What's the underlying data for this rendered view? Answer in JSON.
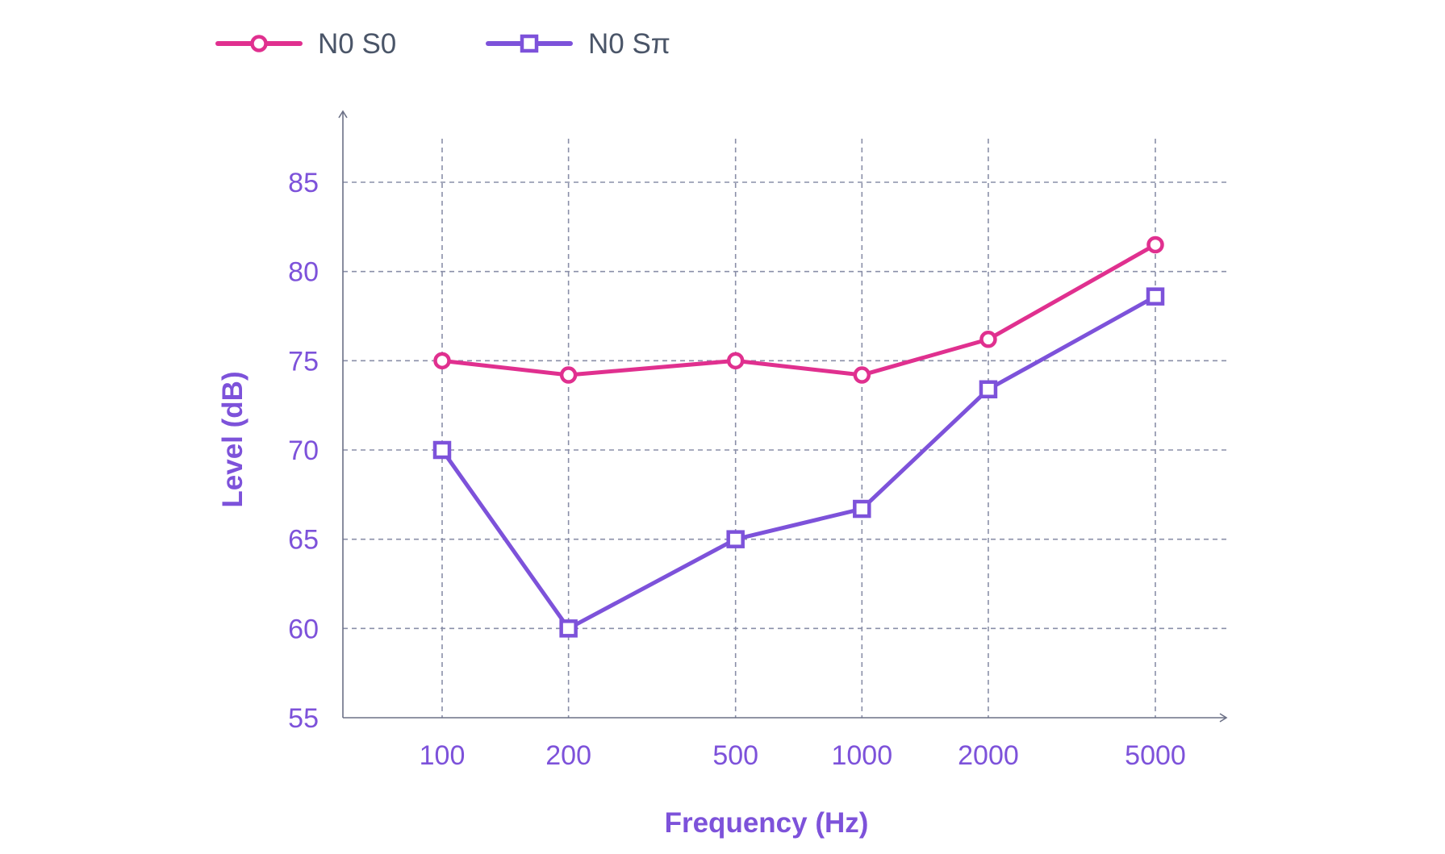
{
  "chart_data": {
    "type": "line",
    "title": "",
    "xlabel": "Frequency (Hz)",
    "ylabel": "Level (dB)",
    "x_scale": "log",
    "x": [
      100,
      200,
      500,
      1000,
      2000,
      5000
    ],
    "x_tick_labels": [
      "100",
      "200",
      "500",
      "1000",
      "2000",
      "5000"
    ],
    "y_ticks": [
      55,
      60,
      65,
      70,
      75,
      80,
      85
    ],
    "ylim": [
      55,
      88
    ],
    "grid": true,
    "legend_position": "top-left",
    "series": [
      {
        "name": "N0 S0",
        "marker": "circle",
        "color": "#e0308f",
        "values": [
          75.0,
          74.2,
          75.0,
          74.2,
          76.2,
          81.5
        ]
      },
      {
        "name": "N0 Sπ",
        "marker": "square",
        "color": "#7d52da",
        "values": [
          70.0,
          60.0,
          65.0,
          66.7,
          73.4,
          78.6
        ]
      }
    ]
  }
}
